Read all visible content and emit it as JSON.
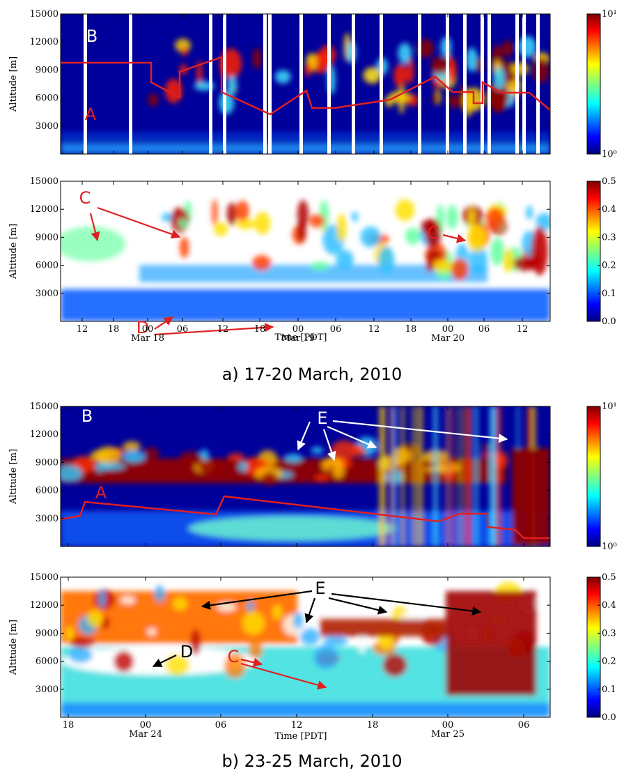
{
  "figure": {
    "groups": [
      {
        "caption": "a) 17-20 March, 2010",
        "x_label": "Time [PDT]",
        "x_ticks": [
          "12",
          "18",
          "00",
          "06",
          "12",
          "18",
          "00",
          "06",
          "12",
          "18",
          "00",
          "06",
          "12"
        ],
        "x_dates": [
          "Mar 18",
          "Mar 19",
          "Mar 20"
        ],
        "panels": [
          {
            "y_label": "Altitude [m]",
            "ylim": [
              0,
              15000
            ],
            "yticks": [
              3000,
              6000,
              9000,
              12000,
              15000
            ],
            "colorbar": {
              "scale": "log",
              "lim": [
                1,
                10
              ],
              "ticks": [
                {
                  "value": 1,
                  "label": "10⁰"
                },
                {
                  "value": 10,
                  "label": "10¹"
                }
              ]
            },
            "annotations": [
              "B",
              "A"
            ]
          },
          {
            "y_label": "Altitude [m]",
            "ylim": [
              0,
              15000
            ],
            "yticks": [
              3000,
              6000,
              9000,
              12000,
              15000
            ],
            "colorbar": {
              "scale": "linear",
              "lim": [
                0,
                0.5
              ],
              "ticks": [
                {
                  "value": 0,
                  "label": "0.0"
                },
                0.1,
                0.2,
                0.3,
                0.4,
                0.5
              ]
            },
            "annotations": [
              "C",
              "D",
              "C"
            ]
          }
        ]
      },
      {
        "caption": "b) 23-25 March, 2010",
        "x_label": "Time [PDT]",
        "x_ticks": [
          "18",
          "00",
          "06",
          "12",
          "18",
          "00",
          "06"
        ],
        "x_dates": [
          "Mar 24",
          "Mar 25"
        ],
        "panels": [
          {
            "y_label": "Altitude [m]",
            "ylim": [
              0,
              15000
            ],
            "yticks": [
              3000,
              6000,
              9000,
              12000,
              15000
            ],
            "colorbar": {
              "scale": "log",
              "lim": [
                1,
                10
              ],
              "ticks": [
                {
                  "value": 1,
                  "label": "10⁰"
                },
                {
                  "value": 10,
                  "label": "10¹"
                }
              ]
            },
            "annotations": [
              "B",
              "E",
              "A"
            ]
          },
          {
            "y_label": "Altitude [m]",
            "ylim": [
              0,
              15000
            ],
            "yticks": [
              3000,
              6000,
              9000,
              12000,
              15000
            ],
            "colorbar": {
              "scale": "linear",
              "lim": [
                0,
                0.5
              ],
              "ticks": [
                {
                  "value": 0,
                  "label": "0.0"
                },
                0.1,
                0.2,
                0.3,
                0.4,
                0.5
              ]
            },
            "annotations": [
              "E",
              "D",
              "C"
            ]
          }
        ]
      }
    ]
  }
}
